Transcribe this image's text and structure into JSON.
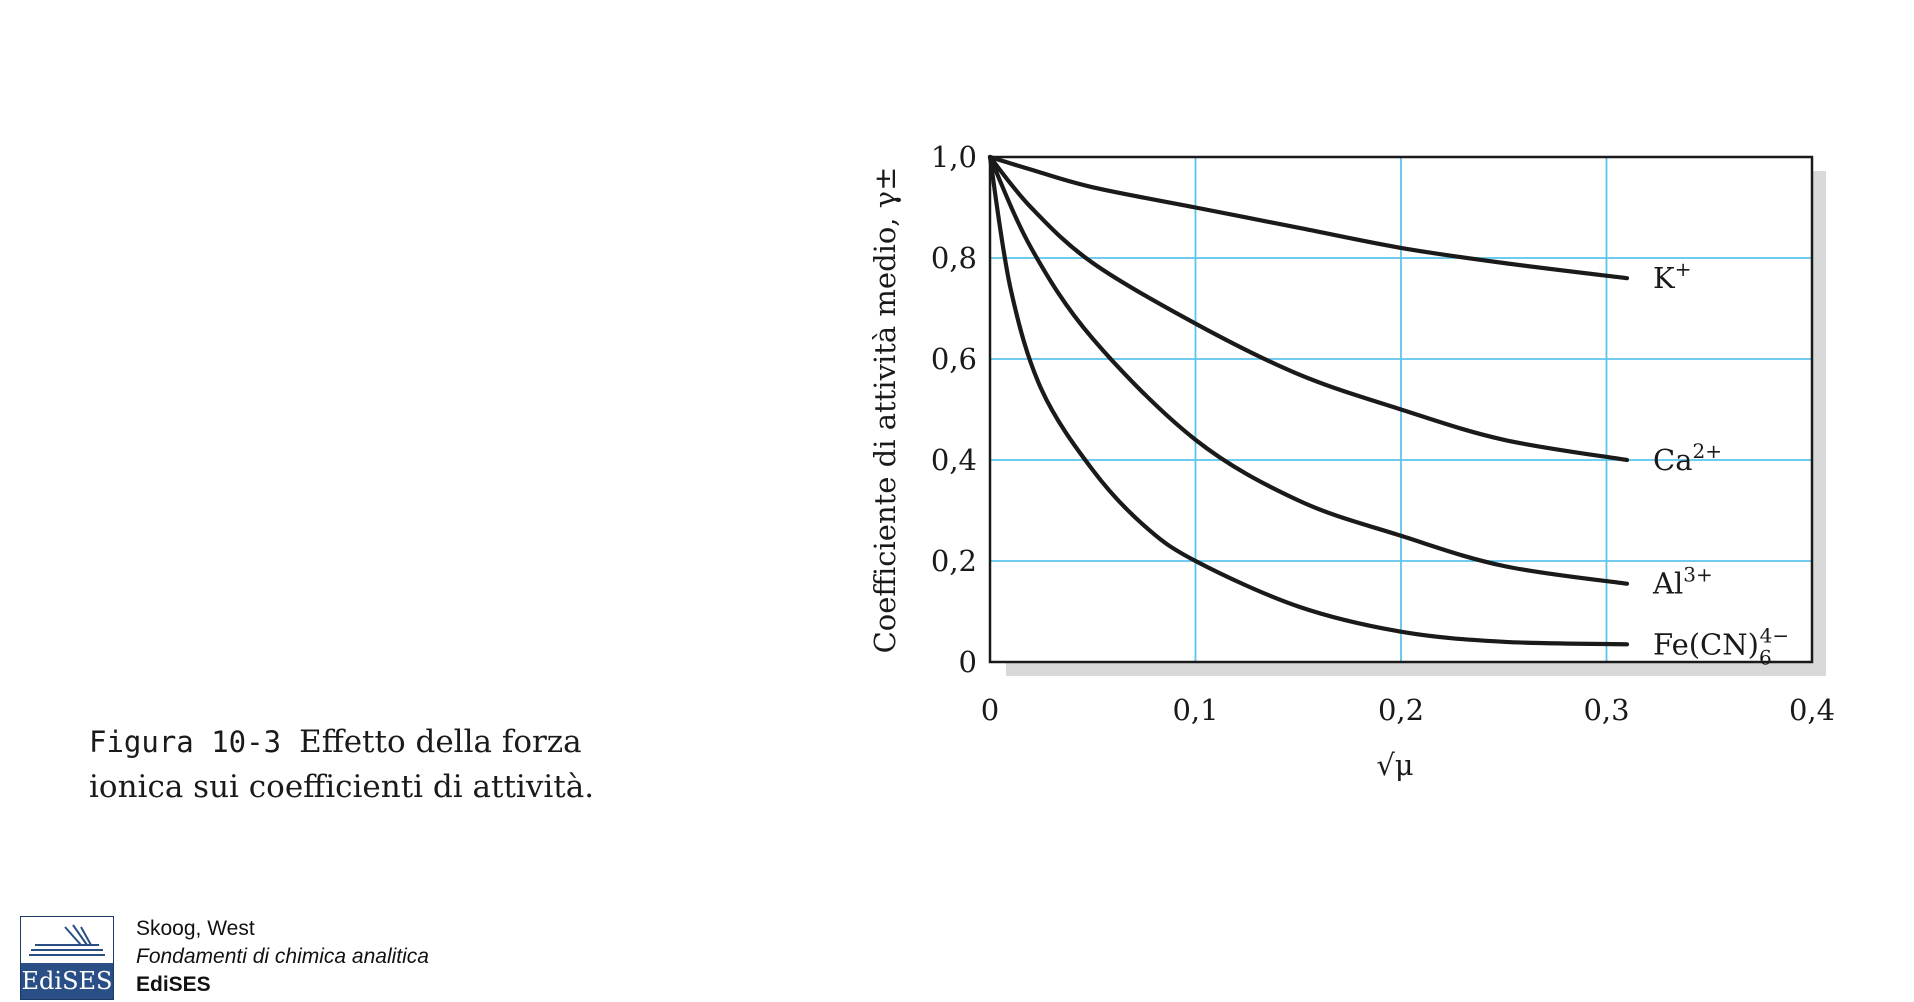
{
  "chart_data": {
    "type": "line",
    "xlabel": "√μ",
    "ylabel": "Coefficiente di attività medio, γ±",
    "xlim": [
      0,
      0.4
    ],
    "ylim": [
      0,
      1.0
    ],
    "x_ticks": [
      "0",
      "0,1",
      "0,2",
      "0,3",
      "0,4"
    ],
    "y_ticks": [
      "0",
      "0,2",
      "0,4",
      "0,6",
      "0,8",
      "1,0"
    ],
    "grid": true,
    "grid_color": "#5bc4ec",
    "line_color": "#1a1a1a",
    "series": [
      {
        "name": "K+",
        "label_main": "K",
        "label_sup": "+",
        "label_sub": "",
        "points": [
          [
            0,
            1.0
          ],
          [
            0.02,
            0.975
          ],
          [
            0.05,
            0.94
          ],
          [
            0.1,
            0.9
          ],
          [
            0.15,
            0.86
          ],
          [
            0.2,
            0.82
          ],
          [
            0.25,
            0.79
          ],
          [
            0.31,
            0.76
          ]
        ]
      },
      {
        "name": "Ca2+",
        "label_main": "Ca",
        "label_sup": "2+",
        "label_sub": "",
        "points": [
          [
            0,
            1.0
          ],
          [
            0.02,
            0.9
          ],
          [
            0.05,
            0.79
          ],
          [
            0.1,
            0.67
          ],
          [
            0.15,
            0.57
          ],
          [
            0.2,
            0.5
          ],
          [
            0.25,
            0.44
          ],
          [
            0.31,
            0.4
          ]
        ]
      },
      {
        "name": "Al3+",
        "label_main": "Al",
        "label_sup": "3+",
        "label_sub": "",
        "points": [
          [
            0,
            1.0
          ],
          [
            0.02,
            0.82
          ],
          [
            0.05,
            0.64
          ],
          [
            0.1,
            0.44
          ],
          [
            0.15,
            0.32
          ],
          [
            0.2,
            0.25
          ],
          [
            0.25,
            0.19
          ],
          [
            0.31,
            0.155
          ]
        ]
      },
      {
        "name": "Fe(CN)64−",
        "label_main": "Fe(CN)",
        "label_sup": "4−",
        "label_sub": "6",
        "points": [
          [
            0,
            1.0
          ],
          [
            0.01,
            0.74
          ],
          [
            0.025,
            0.54
          ],
          [
            0.05,
            0.38
          ],
          [
            0.075,
            0.27
          ],
          [
            0.1,
            0.2
          ],
          [
            0.15,
            0.11
          ],
          [
            0.2,
            0.06
          ],
          [
            0.25,
            0.04
          ],
          [
            0.31,
            0.035
          ]
        ]
      }
    ]
  },
  "caption": {
    "figure_number": "Figura 10-3",
    "text": "Effetto della forza ionica sui coefficienti di attività."
  },
  "footer": {
    "logo_text": "EdiSES",
    "authors": "Skoog, West",
    "book_title": "Fondamenti di chimica analitica",
    "publisher": "EdiSES"
  }
}
